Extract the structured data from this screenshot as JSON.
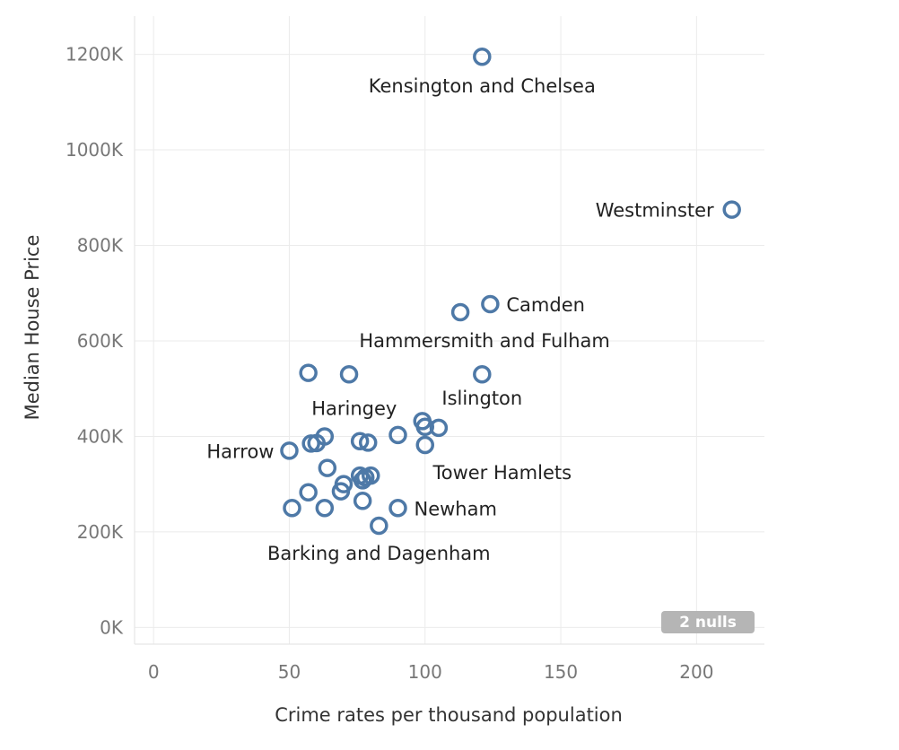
{
  "chart_data": {
    "type": "scatter",
    "xlabel": "Crime rates per thousand population",
    "ylabel": "Median House Price",
    "xlim": [
      -7,
      225
    ],
    "ylim": [
      -35000,
      1280000
    ],
    "x_ticks": [
      0,
      50,
      100,
      150,
      200
    ],
    "x_tick_labels": [
      "0",
      "50",
      "100",
      "150",
      "200"
    ],
    "y_ticks": [
      0,
      200000,
      400000,
      600000,
      800000,
      1000000,
      1200000
    ],
    "y_tick_labels": [
      "0K",
      "200K",
      "400K",
      "600K",
      "800K",
      "1000K",
      "1200K"
    ],
    "grid": true,
    "marker_color": "#4e79a7",
    "points": [
      {
        "x": 121,
        "y": 1195000,
        "label": "Kensington and Chelsea"
      },
      {
        "x": 213,
        "y": 875000,
        "label": "Westminster"
      },
      {
        "x": 124,
        "y": 677000,
        "label": "Camden"
      },
      {
        "x": 113,
        "y": 660000,
        "label": "Hammersmith and Fulham"
      },
      {
        "x": 121,
        "y": 530000,
        "label": "Islington"
      },
      {
        "x": 57,
        "y": 533000
      },
      {
        "x": 72,
        "y": 530000
      },
      {
        "x": 99,
        "y": 432000
      },
      {
        "x": 100,
        "y": 420000
      },
      {
        "x": 105,
        "y": 418000
      },
      {
        "x": 90,
        "y": 403000
      },
      {
        "x": 63,
        "y": 400000,
        "label": "Haringey"
      },
      {
        "x": 76,
        "y": 390000
      },
      {
        "x": 79,
        "y": 387000
      },
      {
        "x": 58,
        "y": 385000
      },
      {
        "x": 60,
        "y": 386000
      },
      {
        "x": 100,
        "y": 382000,
        "label": "Tower Hamlets"
      },
      {
        "x": 50,
        "y": 370000,
        "label": "Harrow"
      },
      {
        "x": 64,
        "y": 334000
      },
      {
        "x": 76,
        "y": 318000
      },
      {
        "x": 80,
        "y": 318000
      },
      {
        "x": 78,
        "y": 314000
      },
      {
        "x": 77,
        "y": 308000
      },
      {
        "x": 70,
        "y": 300000
      },
      {
        "x": 69,
        "y": 285000
      },
      {
        "x": 57,
        "y": 283000
      },
      {
        "x": 77,
        "y": 265000
      },
      {
        "x": 51,
        "y": 250000
      },
      {
        "x": 63,
        "y": 250000
      },
      {
        "x": 90,
        "y": 250000,
        "label": "Newham"
      },
      {
        "x": 83,
        "y": 213000,
        "label": "Barking and Dagenham"
      }
    ],
    "nulls_indicator": "2 nulls"
  }
}
